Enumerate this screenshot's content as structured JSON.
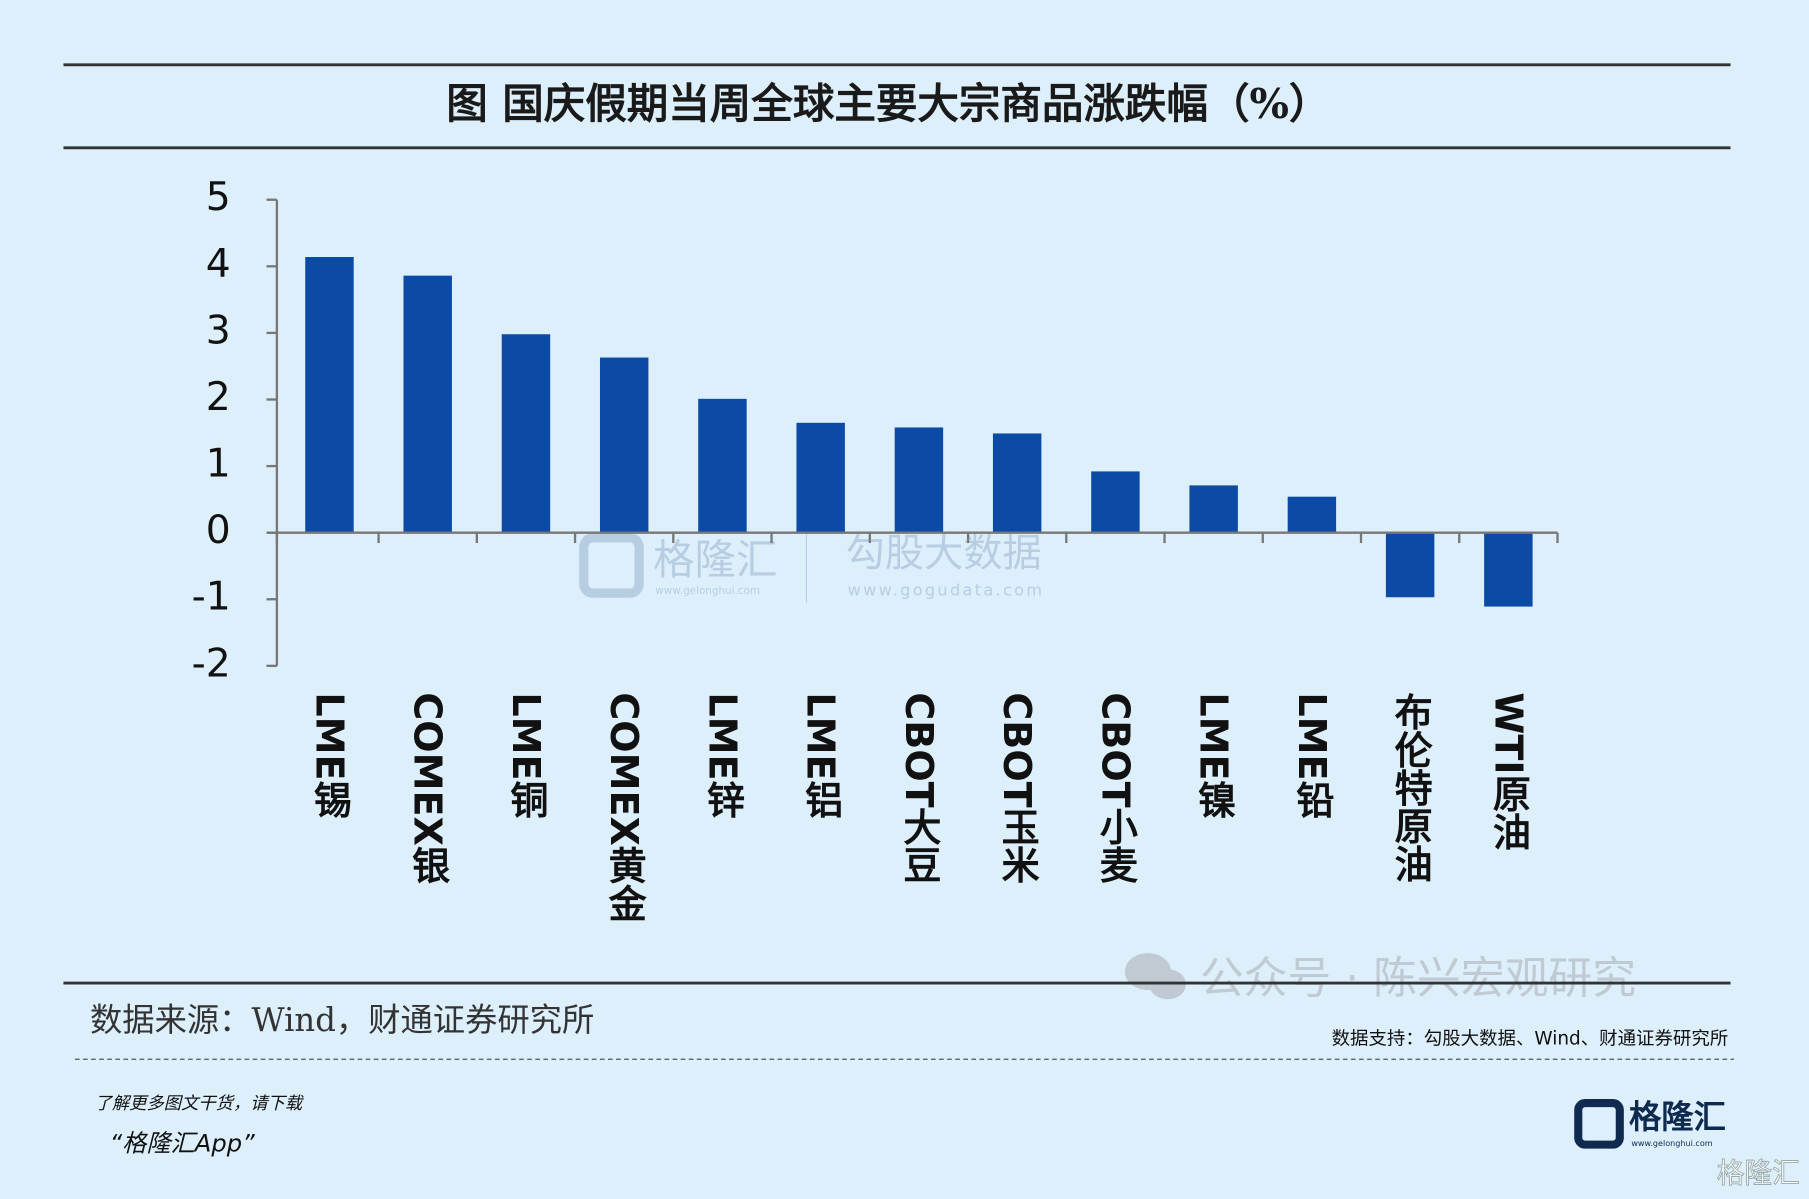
{
  "chart_data": {
    "type": "bar",
    "title": "图 国庆假期当周全球主要大宗商品涨跌幅（%）",
    "categories": [
      "LME锡",
      "COMEX银",
      "LME铜",
      "COMEX黄金",
      "LME锌",
      "LME铝",
      "CBOT大豆",
      "CBOT玉米",
      "CBOT小麦",
      "LME镍",
      "LME铅",
      "布伦特原油",
      "WTI原油"
    ],
    "values": [
      4.14,
      3.86,
      2.98,
      2.63,
      2.01,
      1.65,
      1.58,
      1.49,
      0.92,
      0.71,
      0.54,
      -0.97,
      -1.11
    ],
    "color": "#0b4ba6",
    "ylim": [
      -2,
      5
    ],
    "yticks": [
      -2,
      -1,
      0,
      1,
      2,
      3,
      4,
      5
    ],
    "grid": false
  },
  "source": "数据来源：Wind，财通证券研究所",
  "watermarks": {
    "brand": "格隆汇",
    "brand_url": "www.gelonghui.com",
    "data_brand": "勾股大数据",
    "data_url": "www.gogudata.com",
    "wechat": "公众号 · 陈兴宏观研究"
  },
  "support": "数据支持：勾股大数据、Wind、财通证券研究所",
  "footer": {
    "line1": "了解更多图文干货，请下载",
    "line2": "“格隆汇App”",
    "logo": "格隆汇",
    "logo_url": "www.gelonghui.com",
    "corner": "格隆汇"
  }
}
